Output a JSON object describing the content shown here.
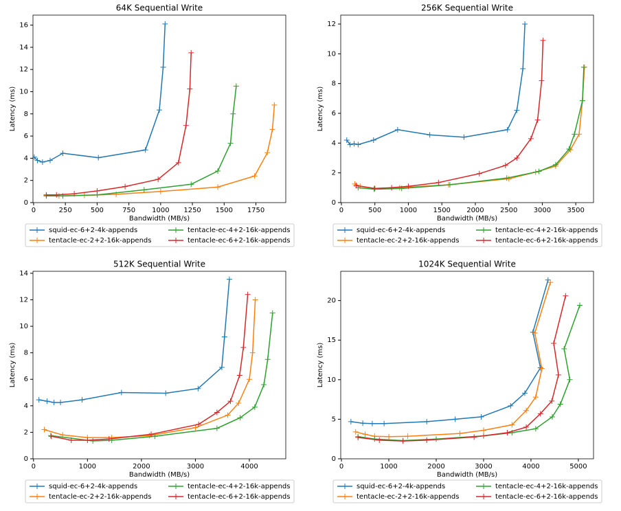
{
  "chart_data": [
    {
      "type": "line",
      "title": "64K  Sequential Write",
      "x_label": "Bandwidth (MB/s)",
      "y_label": "Latency (ms)",
      "xlim": [
        -5,
        1985
      ],
      "ylim": [
        0,
        16.9
      ],
      "xticks": [
        0,
        250,
        500,
        750,
        1000,
        1250,
        1500,
        1750
      ],
      "yticks": [
        0,
        2,
        4,
        6,
        8,
        10,
        12,
        14,
        16
      ],
      "series": [
        {
          "name": "squid-ec-6+2-4k-appends",
          "color": "#1f77b4",
          "x": [
            5,
            30,
            70,
            130,
            230,
            510,
            880,
            990,
            1020,
            1035
          ],
          "values": [
            4.1,
            3.8,
            3.65,
            3.8,
            4.45,
            4.05,
            4.75,
            8.35,
            12.2,
            16.1
          ]
        },
        {
          "name": "tentacle-ec-2+2-16k-appends",
          "color": "#ff7f0e",
          "x": [
            100,
            200,
            400,
            650,
            1000,
            1450,
            1740,
            1840,
            1880,
            1895
          ],
          "values": [
            0.65,
            0.6,
            0.65,
            0.75,
            1.0,
            1.4,
            2.4,
            4.5,
            6.6,
            8.8
          ]
        },
        {
          "name": "tentacle-ec-4+2-16k-appends",
          "color": "#2ca02c",
          "x": [
            100,
            230,
            500,
            870,
            1240,
            1450,
            1550,
            1570,
            1595
          ],
          "values": [
            0.6,
            0.6,
            0.7,
            1.15,
            1.65,
            2.85,
            5.35,
            8.0,
            10.5
          ]
        },
        {
          "name": "tentacle-ec-6+2-16k-appends",
          "color": "#d62728",
          "x": [
            100,
            180,
            320,
            500,
            720,
            980,
            1140,
            1200,
            1230,
            1240
          ],
          "values": [
            0.7,
            0.7,
            0.8,
            1.05,
            1.45,
            2.1,
            3.6,
            6.95,
            10.25,
            13.5
          ]
        }
      ]
    },
    {
      "type": "line",
      "title": "256K  Sequential Write",
      "x_label": "Bandwidth (MB/s)",
      "y_label": "Latency (ms)",
      "xlim": [
        -10,
        3765
      ],
      "ylim": [
        0,
        12.6
      ],
      "xticks": [
        0,
        500,
        1000,
        1500,
        2000,
        2500,
        3000,
        3500
      ],
      "yticks": [
        0,
        2,
        4,
        6,
        8,
        10,
        12
      ],
      "series": [
        {
          "name": "squid-ec-6+2-4k-appends",
          "color": "#1f77b4",
          "x": [
            80,
            130,
            190,
            250,
            480,
            840,
            1320,
            1830,
            2480,
            2620,
            2710,
            2740
          ],
          "values": [
            4.2,
            3.9,
            3.95,
            3.9,
            4.2,
            4.9,
            4.55,
            4.4,
            4.9,
            6.2,
            9.0,
            12.0
          ]
        },
        {
          "name": "tentacle-ec-2+2-16k-appends",
          "color": "#ff7f0e",
          "x": [
            200,
            280,
            490,
            870,
            1600,
            2500,
            2900,
            3200,
            3420,
            3550,
            3600,
            3630
          ],
          "values": [
            1.25,
            1.1,
            0.95,
            1.0,
            1.2,
            1.6,
            2.05,
            2.45,
            3.55,
            4.6,
            6.85,
            9.1
          ]
        },
        {
          "name": "tentacle-ec-4+2-16k-appends",
          "color": "#2ca02c",
          "x": [
            250,
            490,
            900,
            1620,
            2470,
            2950,
            3200,
            3400,
            3480,
            3600,
            3620
          ],
          "values": [
            1.0,
            0.9,
            0.95,
            1.2,
            1.65,
            2.1,
            2.55,
            3.6,
            4.6,
            6.85,
            9.1
          ]
        },
        {
          "name": "tentacle-ec-6+2-16k-appends",
          "color": "#d62728",
          "x": [
            220,
            500,
            750,
            1000,
            1450,
            2060,
            2450,
            2620,
            2830,
            2930,
            2990,
            3010
          ],
          "values": [
            1.15,
            0.95,
            1.0,
            1.1,
            1.35,
            1.95,
            2.5,
            3.0,
            4.3,
            5.55,
            8.2,
            10.9
          ]
        }
      ]
    },
    {
      "type": "line",
      "title": "512K  Sequential Write",
      "x_label": "Bandwidth (MB/s)",
      "y_label": "Latency (ms)",
      "xlim": [
        -10,
        4675
      ],
      "ylim": [
        0,
        14.15
      ],
      "xticks": [
        0,
        1000,
        2000,
        3000,
        4000
      ],
      "yticks": [
        0,
        2,
        4,
        6,
        8,
        10,
        12,
        14
      ],
      "series": [
        {
          "name": "squid-ec-6+2-4k-appends",
          "color": "#1f77b4",
          "x": [
            100,
            250,
            380,
            500,
            900,
            1630,
            2450,
            3050,
            3490,
            3540,
            3630
          ],
          "values": [
            4.45,
            4.35,
            4.25,
            4.25,
            4.45,
            5.0,
            4.95,
            5.3,
            6.9,
            9.2,
            13.55
          ]
        },
        {
          "name": "tentacle-ec-2+2-16k-appends",
          "color": "#ff7f0e",
          "x": [
            200,
            540,
            1000,
            1450,
            2150,
            3000,
            3600,
            3800,
            4000,
            4060,
            4110
          ],
          "values": [
            2.2,
            1.8,
            1.6,
            1.6,
            1.75,
            2.35,
            3.3,
            4.2,
            6.0,
            8.0,
            12.0
          ]
        },
        {
          "name": "tentacle-ec-4+2-16k-appends",
          "color": "#2ca02c",
          "x": [
            320,
            1100,
            1450,
            2250,
            3400,
            3830,
            4100,
            4270,
            4340,
            4430
          ],
          "values": [
            1.75,
            1.35,
            1.4,
            1.7,
            2.3,
            3.1,
            3.9,
            5.6,
            7.5,
            11.0
          ]
        },
        {
          "name": "tentacle-ec-6+2-16k-appends",
          "color": "#d62728",
          "x": [
            330,
            700,
            1000,
            1400,
            2180,
            3060,
            3400,
            3650,
            3820,
            3890,
            3970
          ],
          "values": [
            1.7,
            1.4,
            1.4,
            1.5,
            1.85,
            2.6,
            3.5,
            4.35,
            6.3,
            8.4,
            12.4
          ]
        }
      ]
    },
    {
      "type": "line",
      "title": "1024K  Sequential Write",
      "x_label": "Bandwidth (MB/s)",
      "y_label": "Latency (ms)",
      "xlim": [
        -15,
        5320
      ],
      "ylim": [
        0,
        23.7
      ],
      "xticks": [
        0,
        1000,
        2000,
        3000,
        4000,
        5000
      ],
      "yticks": [
        0,
        5,
        10,
        15,
        20
      ],
      "series": [
        {
          "name": "squid-ec-6+2-4k-appends",
          "color": "#1f77b4",
          "x": [
            200,
            450,
            650,
            900,
            1800,
            2400,
            2950,
            3570,
            3870,
            4200,
            4040,
            4360
          ],
          "values": [
            4.7,
            4.5,
            4.45,
            4.45,
            4.7,
            5.0,
            5.3,
            6.7,
            8.3,
            11.5,
            16.0,
            22.6
          ]
        },
        {
          "name": "tentacle-ec-2+2-16k-appends",
          "color": "#ff7f0e",
          "x": [
            300,
            500,
            700,
            1000,
            1400,
            2500,
            3000,
            3600,
            3900,
            4100,
            4230,
            4080,
            4410
          ],
          "values": [
            3.4,
            3.1,
            2.85,
            2.8,
            2.85,
            3.2,
            3.6,
            4.3,
            6.1,
            7.8,
            11.4,
            15.9,
            22.3
          ]
        },
        {
          "name": "tentacle-ec-4+2-16k-appends",
          "color": "#2ca02c",
          "x": [
            350,
            700,
            1300,
            2000,
            3000,
            3600,
            4100,
            4450,
            4620,
            4820,
            4700,
            5030
          ],
          "values": [
            2.8,
            2.5,
            2.3,
            2.5,
            2.9,
            3.3,
            3.8,
            5.3,
            6.9,
            10.0,
            13.9,
            19.4
          ]
        },
        {
          "name": "tentacle-ec-6+2-16k-appends",
          "color": "#d62728",
          "x": [
            350,
            800,
            1300,
            1800,
            2800,
            3500,
            3900,
            4200,
            4440,
            4580,
            4480,
            4730
          ],
          "values": [
            2.7,
            2.35,
            2.25,
            2.35,
            2.75,
            3.3,
            4.0,
            5.7,
            7.3,
            10.6,
            14.6,
            20.6
          ]
        }
      ]
    }
  ]
}
